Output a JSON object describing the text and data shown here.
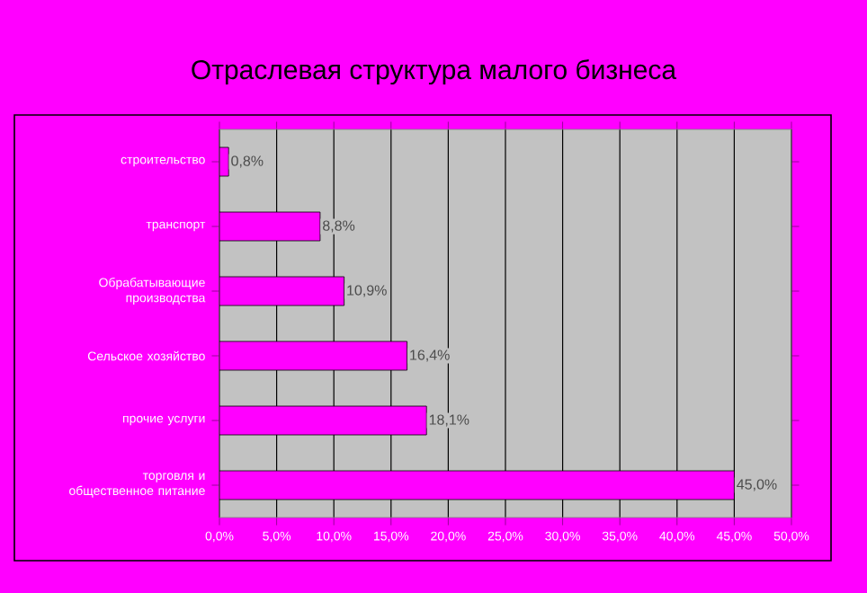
{
  "chart_data": {
    "type": "bar",
    "orientation": "horizontal",
    "title": "Отраслевая структура малого бизнеса",
    "categories": [
      "строительство",
      "транспорт",
      "Обрабатывающие производства",
      "Сельское хозяйство",
      "прочие услуги",
      "торговля и общественное питание"
    ],
    "values": [
      0.8,
      8.8,
      10.9,
      16.4,
      18.1,
      45.0
    ],
    "value_labels": [
      "0,8%",
      "8,8%",
      "10,9%",
      "16,4%",
      "18,1%",
      "45,0%"
    ],
    "color": "#ff00ff",
    "xlim": [
      0,
      50
    ],
    "xticks": [
      {
        "value": 0,
        "label": "0,0%"
      },
      {
        "value": 5,
        "label": "5,0%"
      },
      {
        "value": 10,
        "label": "10,0%"
      },
      {
        "value": 15,
        "label": "15,0%"
      },
      {
        "value": 20,
        "label": "20,0%"
      },
      {
        "value": 25,
        "label": "25,0%"
      },
      {
        "value": 30,
        "label": "30,0%"
      },
      {
        "value": 35,
        "label": "35,0%"
      },
      {
        "value": 40,
        "label": "40,0%"
      },
      {
        "value": 45,
        "label": "45,0%"
      },
      {
        "value": 50,
        "label": "50,0%"
      }
    ],
    "grid": "x"
  }
}
